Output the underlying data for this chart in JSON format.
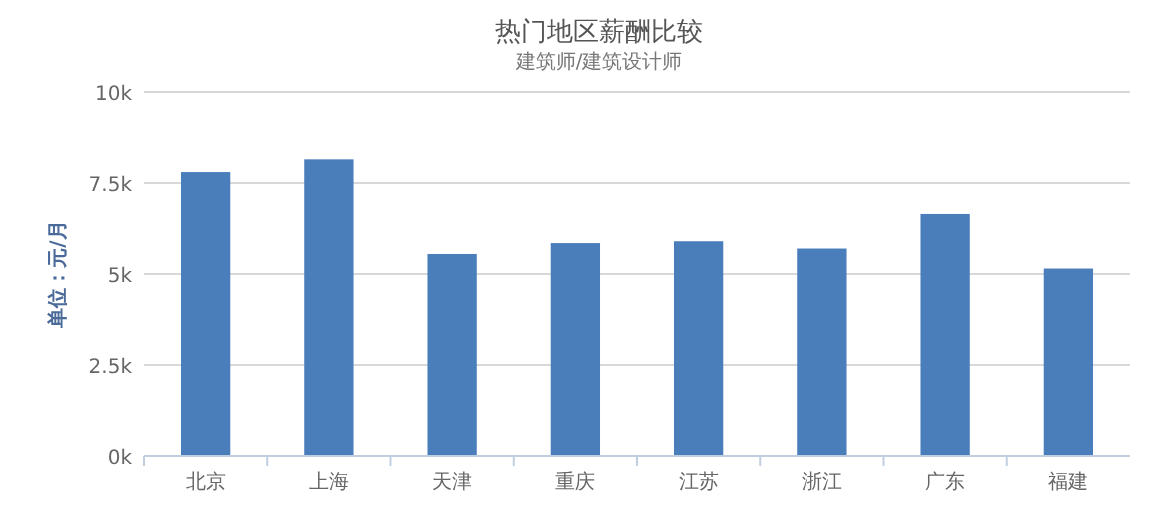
{
  "chart_data": {
    "type": "bar",
    "title": "热门地区薪酬比较",
    "subtitle": "建筑师/建筑设计师",
    "ylabel": "单位：元/月",
    "categories": [
      "北京",
      "上海",
      "天津",
      "重庆",
      "江苏",
      "浙江",
      "广东",
      "福建"
    ],
    "values": [
      7800,
      8150,
      5550,
      5850,
      5900,
      5700,
      6650,
      5150
    ],
    "color": "#4a7ebb",
    "ylim": [
      0,
      10000
    ],
    "yticks": [
      {
        "value": 0,
        "label": "0k"
      },
      {
        "value": 2500,
        "label": "2.5k"
      },
      {
        "value": 5000,
        "label": "5k"
      },
      {
        "value": 7500,
        "label": "7.5k"
      },
      {
        "value": 10000,
        "label": "10k"
      }
    ],
    "grid": "y"
  }
}
